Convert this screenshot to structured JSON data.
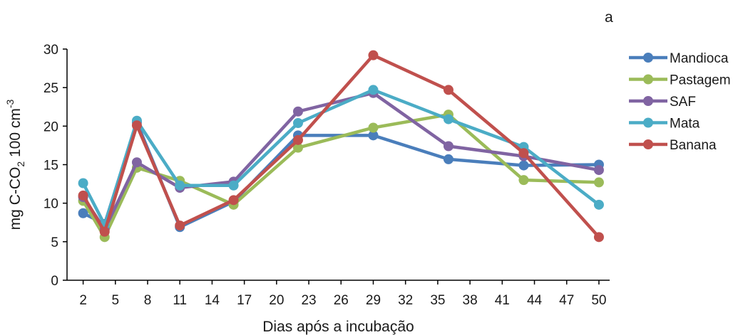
{
  "panel_label": "a",
  "chart_data": {
    "type": "line",
    "title": "",
    "xlabel": "Dias após a incubação",
    "ylabel_parts": [
      "mg C-CO",
      "2",
      " 100 cm",
      "-3"
    ],
    "x_ticks": [
      2,
      5,
      8,
      11,
      14,
      17,
      20,
      23,
      26,
      29,
      32,
      35,
      38,
      41,
      44,
      47,
      50
    ],
    "y_ticks": [
      0,
      5,
      10,
      15,
      20,
      25,
      30
    ],
    "xlim": [
      0.5,
      51
    ],
    "ylim": [
      0,
      30
    ],
    "grid": false,
    "legend_position": "right",
    "series": [
      {
        "name": "Mandioca",
        "color": "#4a7ebb",
        "x": [
          2,
          4,
          7,
          11,
          16,
          22,
          29,
          36,
          43,
          50
        ],
        "y": [
          8.7,
          7.3,
          20.5,
          6.9,
          10.2,
          18.8,
          18.8,
          15.7,
          14.9,
          15.0
        ]
      },
      {
        "name": "Pastagem",
        "color": "#9bbb59",
        "x": [
          2,
          4,
          7,
          11,
          16,
          22,
          29,
          36,
          43,
          50
        ],
        "y": [
          10.3,
          5.6,
          14.6,
          12.9,
          9.8,
          17.2,
          19.8,
          21.5,
          13.0,
          12.7
        ]
      },
      {
        "name": "SAF",
        "color": "#8064a2",
        "x": [
          2,
          4,
          7,
          11,
          16,
          22,
          29,
          36,
          43,
          50
        ],
        "y": [
          10.8,
          6.6,
          15.3,
          12.0,
          12.8,
          21.9,
          24.3,
          17.4,
          16.1,
          14.3
        ]
      },
      {
        "name": "Mata",
        "color": "#4bacc6",
        "x": [
          2,
          4,
          7,
          11,
          16,
          22,
          29,
          36,
          43,
          50
        ],
        "y": [
          12.6,
          7.2,
          20.7,
          12.3,
          12.3,
          20.4,
          24.7,
          20.9,
          17.3,
          9.8
        ]
      },
      {
        "name": "Banana",
        "color": "#c0504d",
        "x": [
          2,
          4,
          7,
          11,
          16,
          22,
          29,
          36,
          43,
          50
        ],
        "y": [
          11.0,
          6.3,
          20.1,
          7.1,
          10.4,
          18.2,
          29.2,
          24.7,
          16.5,
          5.6
        ]
      }
    ]
  }
}
